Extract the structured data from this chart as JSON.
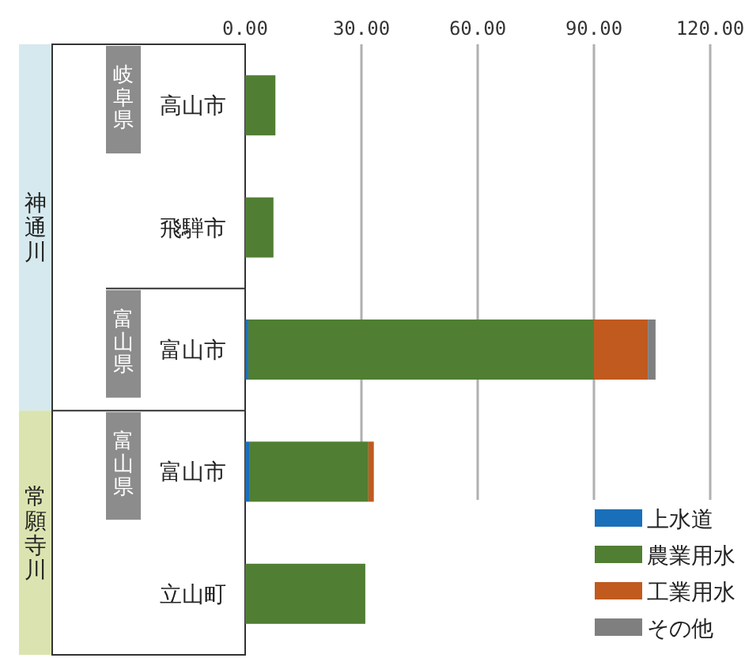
{
  "chart_data": {
    "type": "bar",
    "orientation": "horizontal",
    "stacked": true,
    "categories": [
      "高山市",
      "飛騨市",
      "富山市",
      "富山市",
      "立山町"
    ],
    "series": [
      {
        "name": "上水道",
        "color": "#1a6fba",
        "values": [
          null,
          null,
          0.8,
          1.2,
          null
        ]
      },
      {
        "name": "農業用水",
        "color": "#507e32",
        "values": [
          7.8,
          7.3,
          89.2,
          30.6,
          31.0
        ]
      },
      {
        "name": "工業用水",
        "color": "#c05a1f",
        "values": [
          null,
          null,
          13.9,
          1.4,
          null
        ]
      },
      {
        "name": "その他",
        "color": "#7f7f7f",
        "values": [
          null,
          null,
          2.0,
          null,
          null
        ]
      }
    ],
    "xlim": [
      0,
      120
    ],
    "xticks": [
      {
        "value": 0,
        "label": "0.00"
      },
      {
        "value": 30,
        "label": "30.00"
      },
      {
        "value": 60,
        "label": "60.00"
      },
      {
        "value": 90,
        "label": "90.00"
      },
      {
        "value": 120,
        "label": "120.00"
      }
    ],
    "grid": "x",
    "legend": "bottom right",
    "annotations": [
      "神通川",
      "常願寺川",
      "岐阜県",
      "富山県",
      "富山県"
    ]
  }
}
